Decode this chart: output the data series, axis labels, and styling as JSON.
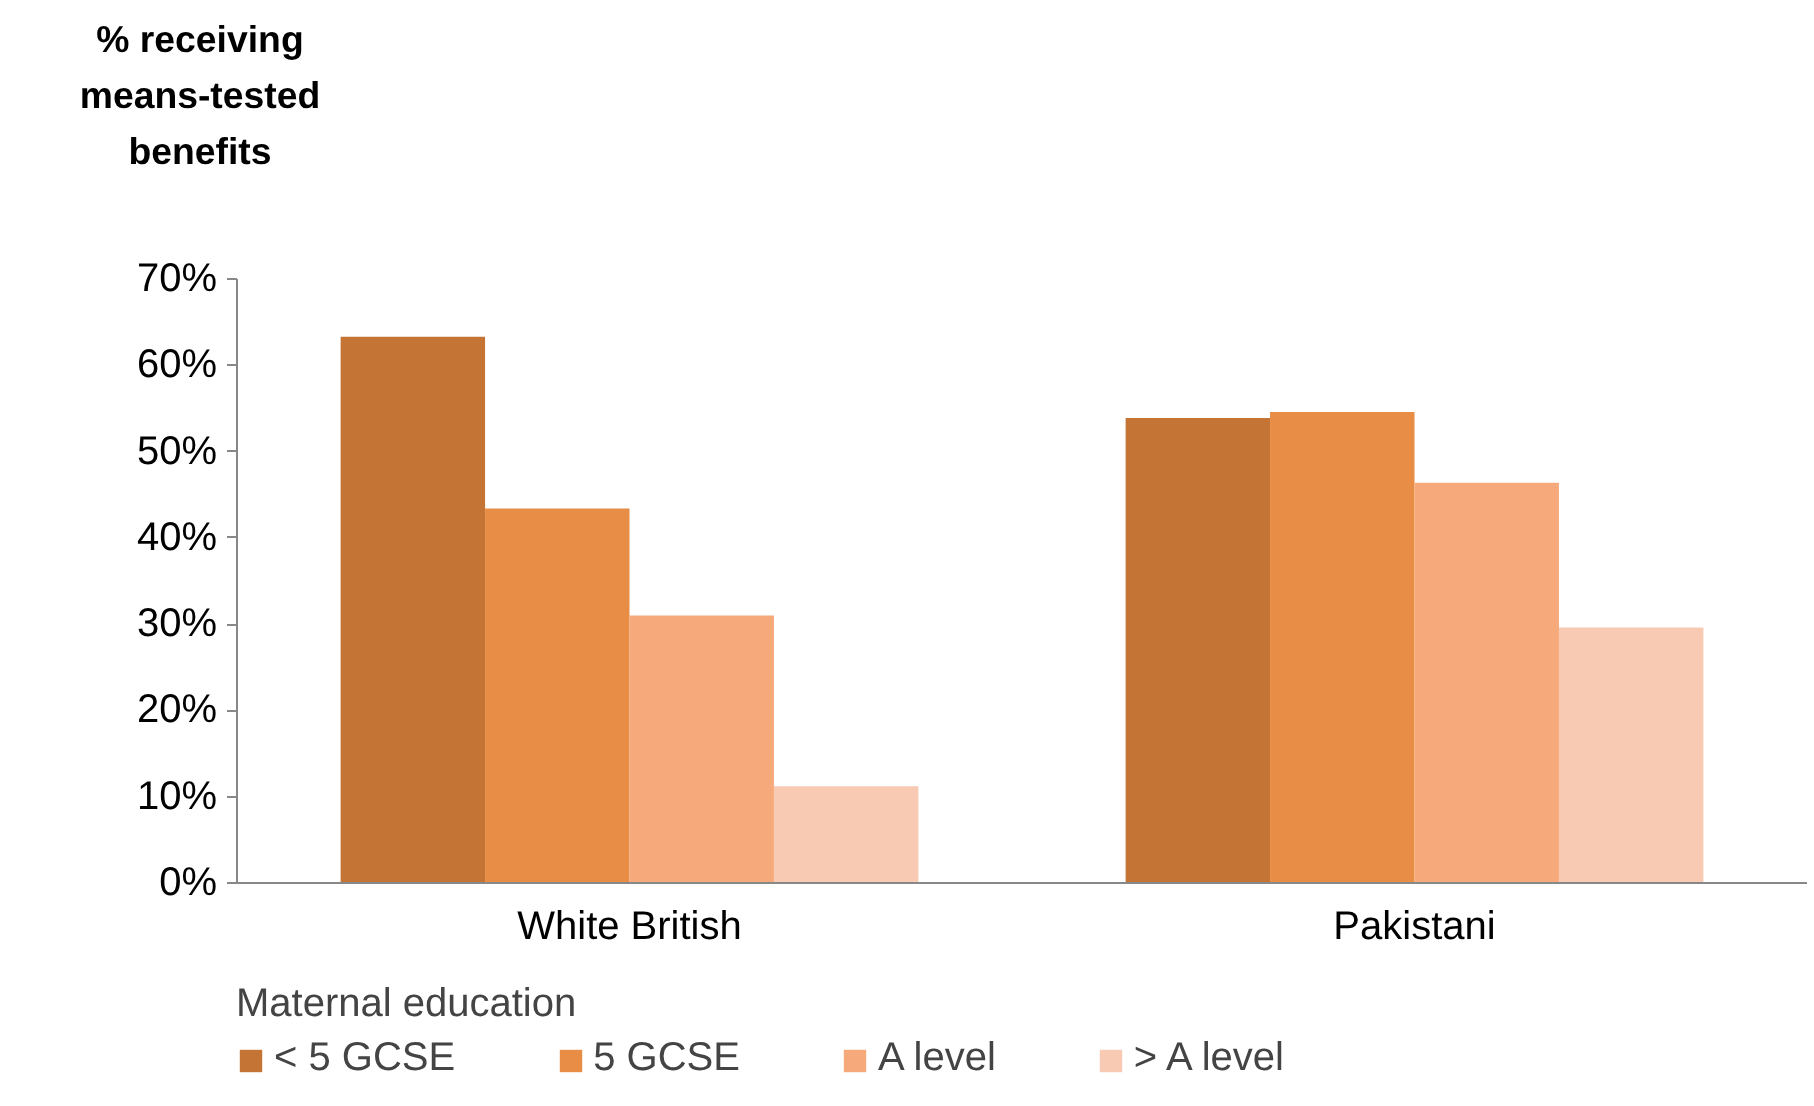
{
  "chart_data": {
    "type": "bar",
    "ylabel": "% receiving means-tested benefits",
    "legend_title": "Maternal education",
    "categories": [
      "White British",
      "Pakistani"
    ],
    "series": [
      {
        "name": "< 5 GCSE",
        "color": "#c47535",
        "values": [
          63.3,
          53.9
        ]
      },
      {
        "name": "5 GCSE",
        "color": "#e88d45",
        "values": [
          43.4,
          54.6
        ]
      },
      {
        "name": "A level",
        "color": "#f6a97a",
        "values": [
          31.0,
          46.4
        ]
      },
      {
        "name": "> A level",
        "color": "#f8c9b3",
        "values": [
          11.2,
          29.6
        ]
      }
    ],
    "ylim": [
      0,
      70
    ],
    "yticks": [
      {
        "value": 0,
        "label": "0%"
      },
      {
        "value": 10,
        "label": "10%"
      },
      {
        "value": 20,
        "label": "20%"
      },
      {
        "value": 30,
        "label": "30%"
      },
      {
        "value": 40,
        "label": "40%"
      },
      {
        "value": 50,
        "label": "50%"
      },
      {
        "value": 60,
        "label": "60%"
      },
      {
        "value": 70,
        "label": "70%"
      }
    ],
    "grid": false,
    "legend": "bottom"
  }
}
